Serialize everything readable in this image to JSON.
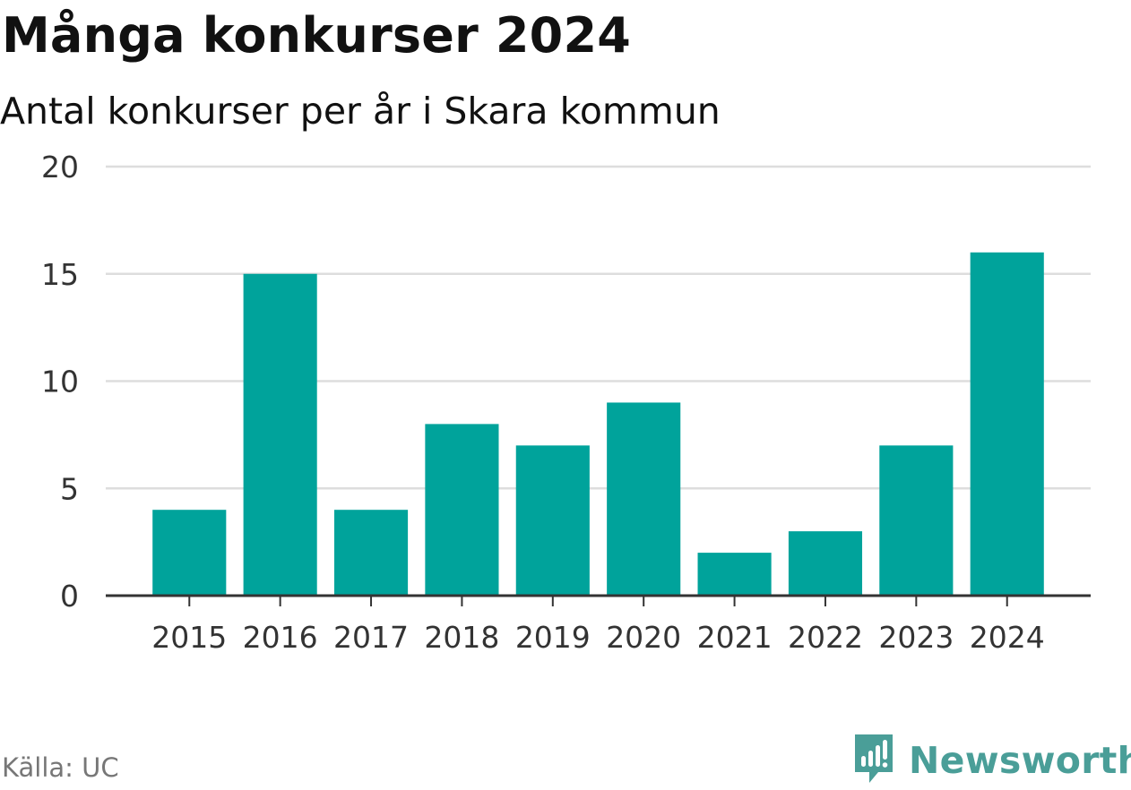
{
  "title": "Många konkurser 2024",
  "subtitle": "Antal konkurser per år i Skara kommun",
  "source": "Källa: UC",
  "brand": {
    "name": "Newsworthy",
    "icon": "newsworthy-logo-icon",
    "color": "#4a9e98"
  },
  "colors": {
    "bar": "#00a39b",
    "grid": "#dddddd",
    "axis": "#333333"
  },
  "chart_data": {
    "type": "bar",
    "categories": [
      "2015",
      "2016",
      "2017",
      "2018",
      "2019",
      "2020",
      "2021",
      "2022",
      "2023",
      "2024"
    ],
    "values": [
      4,
      15,
      4,
      8,
      7,
      9,
      2,
      3,
      7,
      16
    ],
    "title": "Många konkurser 2024",
    "subtitle": "Antal konkurser per år i Skara kommun",
    "xlabel": "",
    "ylabel": "",
    "ylim": [
      0,
      20
    ],
    "yticks": [
      0,
      5,
      10,
      15,
      20
    ],
    "grid": true,
    "legend": "none"
  }
}
